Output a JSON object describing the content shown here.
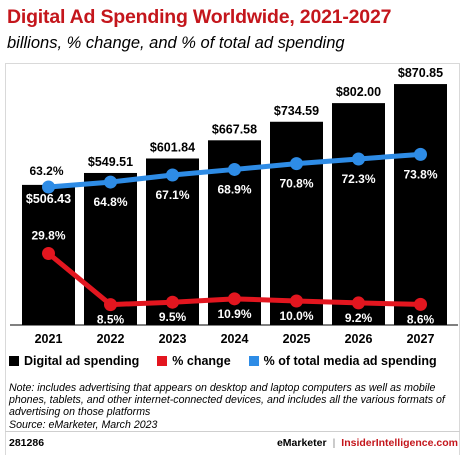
{
  "title": "Digital Ad Spending Worldwide, 2021-2027",
  "subtitle": "billions, % change, and % of total ad spending",
  "colors": {
    "title": "#c4161c",
    "bar": "#000000",
    "change_line": "#e3161f",
    "share_line": "#2e8ce6"
  },
  "chart_data": {
    "type": "bar",
    "categories": [
      "2021",
      "2022",
      "2023",
      "2024",
      "2025",
      "2026",
      "2027"
    ],
    "series": [
      {
        "name": "Digital ad spending",
        "kind": "bar",
        "values": [
          506.43,
          549.51,
          601.84,
          667.58,
          734.59,
          802.0,
          870.85
        ],
        "labels": [
          "$506.43",
          "$549.51",
          "$601.84",
          "$667.58",
          "$734.59",
          "$802.00",
          "$870.85"
        ]
      },
      {
        "name": "% change",
        "kind": "line",
        "values": [
          29.8,
          8.5,
          9.5,
          10.9,
          10.0,
          9.2,
          8.6
        ],
        "labels": [
          "29.8%",
          "8.5%",
          "9.5%",
          "10.9%",
          "10.0%",
          "9.2%",
          "8.6%"
        ]
      },
      {
        "name": "% of total media ad spending",
        "kind": "line",
        "values": [
          63.2,
          64.8,
          67.1,
          68.9,
          70.8,
          72.3,
          73.8
        ],
        "labels": [
          "63.2%",
          "64.8%",
          "67.1%",
          "68.9%",
          "70.8%",
          "72.3%",
          "73.8%"
        ]
      }
    ],
    "bar_ylim": [
      0,
      900
    ],
    "line_ylim": [
      0,
      80
    ],
    "legend_position": "bottom"
  },
  "legend": [
    {
      "label": "Digital ad spending",
      "color": "#000000"
    },
    {
      "label": "% change",
      "color": "#e3161f"
    },
    {
      "label": "% of total media ad spending",
      "color": "#2e8ce6"
    }
  ],
  "notes": {
    "note": "Note: includes advertising that appears on desktop and laptop computers as well as mobile phones, tablets, and other internet-connected devices, and includes all the various formats of advertising on those platforms",
    "source": "Source: eMarketer, March 2023"
  },
  "footer": {
    "id": "281286",
    "brand1": "eMarketer",
    "separator": "|",
    "brand2": "InsiderIntelligence.com"
  }
}
